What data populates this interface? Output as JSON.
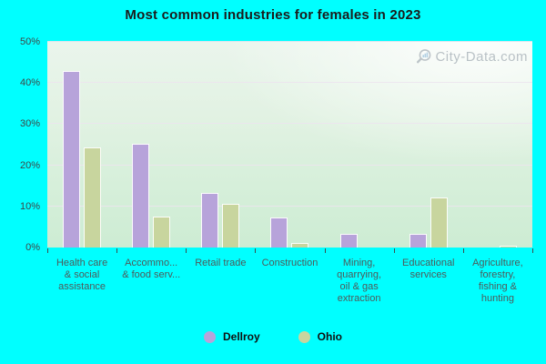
{
  "title": "Most common industries for females in 2023",
  "watermark": "City-Data.com",
  "colors": {
    "page_bg": "#00ffff",
    "dellroy": "#b7a3da",
    "ohio": "#c8d59e",
    "gridline": "#ece4ee",
    "axis_text": "#3e4747",
    "category_text": "#4e5a5a"
  },
  "chart_data": {
    "type": "bar",
    "title": "Most common industries for females in 2023",
    "categories": [
      "Health care & social assistance",
      "Accommodation & food services",
      "Retail trade",
      "Construction",
      "Mining, quarrying, oil & gas extraction",
      "Educational services",
      "Agriculture, forestry, fishing & hunting"
    ],
    "category_labels_display": [
      "Health care\n& social\nassistance",
      "Accommo...\n& food serv...",
      "Retail trade",
      "Construction",
      "Mining,\nquarrying,\noil & gas\nextraction",
      "Educational\nservices",
      "Agriculture,\nforestry,\nfishing &\nhunting"
    ],
    "series": [
      {
        "name": "Dellroy",
        "color": "#b7a3da",
        "values": [
          43,
          25.3,
          13.2,
          7.2,
          3.4,
          3.4,
          0
        ]
      },
      {
        "name": "Ohio",
        "color": "#c8d59e",
        "values": [
          24.4,
          7.5,
          10.6,
          1.1,
          0,
          12.1,
          0.3
        ]
      }
    ],
    "xlabel": "",
    "ylabel": "",
    "ylim": [
      0,
      50
    ],
    "y_ticks": [
      "0%",
      "10%",
      "20%",
      "30%",
      "40%",
      "50%"
    ],
    "grid": true,
    "legend_position": "bottom"
  }
}
